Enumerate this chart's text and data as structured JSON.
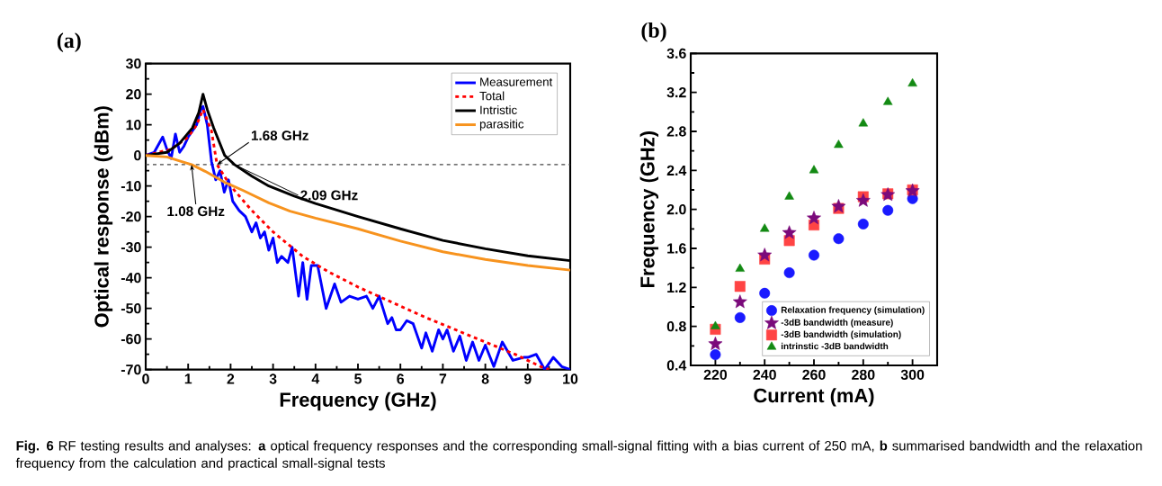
{
  "chart_data": [
    {
      "type": "line",
      "title": "(a)",
      "xlabel": "Frequency (GHz)",
      "ylabel": "Optical response (dBm)",
      "xlim": [
        0,
        10
      ],
      "xticks": [
        0,
        1,
        2,
        3,
        4,
        5,
        6,
        7,
        8,
        9,
        10
      ],
      "ylim": [
        -70,
        30
      ],
      "yticks": [
        -70,
        -60,
        -50,
        -40,
        -30,
        -20,
        -10,
        0,
        10,
        20,
        30
      ],
      "legend": "top right",
      "grid": false,
      "marker": "none",
      "series": [
        {
          "name": "Measurement",
          "color": "#0000ff",
          "line_style": "solid",
          "x": [
            0,
            0.2,
            0.4,
            0.5,
            0.6,
            0.7,
            0.8,
            0.9,
            1.0,
            1.1,
            1.2,
            1.3,
            1.35,
            1.45,
            1.55,
            1.65,
            1.75,
            1.85,
            1.95,
            2.05,
            2.2,
            2.35,
            2.5,
            2.6,
            2.7,
            2.8,
            2.9,
            3.0,
            3.1,
            3.2,
            3.35,
            3.45,
            3.6,
            3.7,
            3.8,
            3.9,
            4.05,
            4.25,
            4.45,
            4.6,
            4.8,
            5.0,
            5.2,
            5.35,
            5.5,
            5.7,
            5.8,
            5.9,
            6.0,
            6.15,
            6.3,
            6.5,
            6.6,
            6.75,
            6.9,
            7.0,
            7.1,
            7.25,
            7.4,
            7.55,
            7.7,
            7.85,
            8.0,
            8.2,
            8.4,
            8.65,
            8.9,
            9.0,
            9.2,
            9.4,
            9.6,
            9.8,
            10
          ],
          "values": [
            0,
            1,
            6,
            2,
            -1,
            7,
            1,
            3,
            6,
            8,
            10,
            15,
            16,
            10,
            -2,
            -8,
            -5,
            -12,
            -8,
            -15,
            -18,
            -20,
            -25,
            -22,
            -27,
            -25,
            -31,
            -27,
            -35,
            -33,
            -35,
            -30,
            -46,
            -35,
            -47,
            -36,
            -36,
            -50,
            -42,
            -48,
            -46,
            -47,
            -46,
            -50,
            -46,
            -55,
            -53,
            -57,
            -57,
            -54,
            -55,
            -63,
            -58,
            -64,
            -57,
            -60,
            -57,
            -64,
            -59,
            -67,
            -61,
            -67,
            -62,
            -69,
            -61,
            -67,
            -66,
            -66,
            -65,
            -70,
            -66,
            -69,
            -70
          ]
        },
        {
          "name": "Total",
          "color": "#ff0000",
          "line_style": "dashed",
          "x": [
            0,
            0.6,
            1.0,
            1.2,
            1.35,
            1.55,
            1.68,
            2.0,
            2.5,
            3.0,
            3.7,
            4.3,
            5.0,
            5.8,
            6.6,
            7.3,
            8.0,
            8.7,
            9.3,
            9.5
          ],
          "values": [
            0,
            2,
            6,
            10,
            15,
            8,
            -3,
            -10,
            -18,
            -25,
            -33,
            -38,
            -43,
            -48,
            -53,
            -57,
            -61,
            -65,
            -69,
            -70
          ]
        },
        {
          "name": "Intristic",
          "color": "#000000",
          "line_style": "solid",
          "x": [
            0,
            0.5,
            0.8,
            1.1,
            1.25,
            1.35,
            1.45,
            1.6,
            1.86,
            2.09,
            2.5,
            2.9,
            3.5,
            4.0,
            5.0,
            6.0,
            7.0,
            8.0,
            9.0,
            10.0
          ],
          "values": [
            0,
            1,
            4,
            9,
            14,
            20,
            15,
            9,
            0,
            -3,
            -6.8,
            -10,
            -13.3,
            -15.7,
            -20,
            -24,
            -27.8,
            -30.5,
            -32.8,
            -34.4
          ]
        },
        {
          "name": "parasitic",
          "color": "#f7931e",
          "line_style": "solid",
          "x": [
            0,
            0.5,
            0.8,
            1.08,
            1.4,
            1.86,
            2.3,
            2.9,
            3.4,
            4.0,
            5.0,
            6.0,
            7.0,
            8.0,
            9.0,
            10.0
          ],
          "values": [
            0,
            -0.5,
            -1.8,
            -3,
            -5.2,
            -8.8,
            -11.5,
            -15.5,
            -18.2,
            -20.5,
            -24,
            -28,
            -31.5,
            -34,
            -36,
            -37.5
          ]
        }
      ],
      "ref_lines": [
        {
          "axis": "y",
          "value": -3,
          "color": "#444444",
          "line_style": "dashed"
        }
      ],
      "annotations": [
        {
          "text": "1.68 GHz",
          "x": 1.68,
          "y": -3
        },
        {
          "text": "2.09 GHz",
          "x": 2.09,
          "y": -3
        },
        {
          "text": "1.08 GHz",
          "x": 1.08,
          "y": -3
        },
        "**Fig. 6** RF testing results and analyses: **a** optical frequency responses and the corresponding small-signal fitting with a bias current of 250 mA, **b** summarised bandwidth and the relaxation frequency from the calculation and practical small-signal tests"
      ]
    },
    {
      "type": "scatter",
      "title": "(b)",
      "xlabel": "Current (mA)",
      "ylabel": "Frequency (GHz)",
      "xlim": [
        210,
        310
      ],
      "xticks": [
        220,
        240,
        260,
        280,
        300
      ],
      "ylim": [
        0.4,
        3.6
      ],
      "yticks": [
        0.4,
        0.8,
        1.2,
        1.6,
        {
          "value": 2,
          "label": "2.0"
        },
        2.4,
        2.8,
        3.2,
        3.6
      ],
      "legend": "bottom right",
      "grid": false,
      "x": [
        220,
        230,
        240,
        250,
        260,
        270,
        280,
        290,
        300
      ],
      "series": [
        {
          "name": "Relaxation frequency (simulation)",
          "color": "#1a1aff",
          "marker": "circle",
          "values": [
            0.51,
            0.89,
            1.14,
            1.35,
            1.53,
            1.7,
            1.85,
            1.99,
            2.11
          ]
        },
        {
          "name": "-3dB bandwidth (measure)",
          "color": "#7b0a7b",
          "marker": "star",
          "values": [
            0.62,
            1.05,
            1.53,
            1.76,
            1.91,
            2.03,
            2.09,
            2.15,
            2.19
          ]
        },
        {
          "name": "-3dB bandwidth (simulation)",
          "color": "#ff4444",
          "marker": "square",
          "values": [
            0.77,
            1.21,
            1.49,
            1.68,
            1.84,
            2.01,
            2.13,
            2.16,
            2.2
          ]
        },
        {
          "name": "intrinstic -3dB bandwidth",
          "color": "#138a13",
          "marker": "triangle",
          "values": [
            0.8,
            1.39,
            1.8,
            2.13,
            2.4,
            2.66,
            2.88,
            3.1,
            3.29
          ]
        }
      ]
    }
  ]
}
